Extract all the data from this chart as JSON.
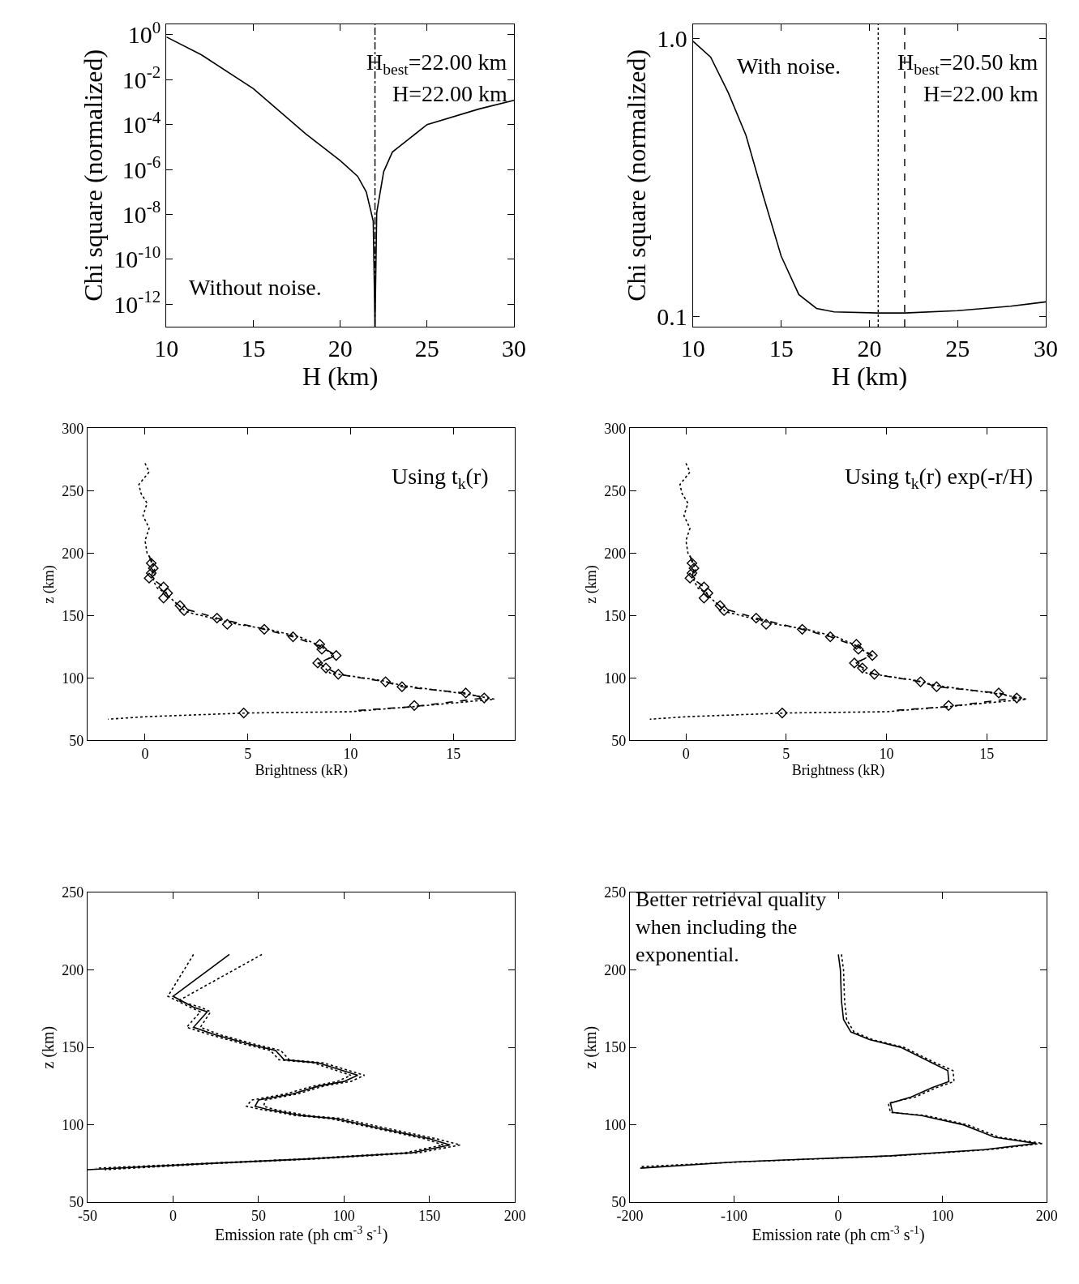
{
  "chart_data": [
    {
      "type": "line",
      "xlabel": "H (km)",
      "ylabel": "Chi square (normalized)",
      "log": "y",
      "xlim": [
        10,
        30
      ],
      "xticks": [
        10,
        15,
        20,
        25,
        30
      ],
      "ylim": [
        1e-13,
        3
      ],
      "yticks": [
        {
          "value": 1,
          "label": "10$^{0}$"
        },
        {
          "value": 0.01,
          "label": "10$^{-2}$"
        },
        {
          "value": 0.0001,
          "label": "10$^{-4}$"
        },
        {
          "value": 1e-06,
          "label": "10$^{-6}$"
        },
        {
          "value": 1e-08,
          "label": "10$^{-8}$"
        },
        {
          "value": 1e-10,
          "label": "10$^{-10}$"
        },
        {
          "value": 1e-12,
          "label": "10$^{-12}$"
        }
      ],
      "series": [
        {
          "color": "#000000",
          "line_style": "solid",
          "x": [
            10,
            12,
            15,
            18,
            20,
            21,
            21.5,
            21.9,
            22,
            22.1,
            22.5,
            23,
            25,
            28,
            30
          ],
          "values": [
            0.8,
            0.13,
            0.004,
            4e-05,
            2.5e-06,
            5e-07,
            1e-07,
            5e-09,
            1e-13,
            1.2e-08,
            8e-07,
            6e-06,
            0.0001,
            0.0005,
            0.0012
          ]
        }
      ],
      "ref_lines": [
        {
          "axis": "x",
          "value": 22,
          "line_style": "dashdot",
          "color": "#000000"
        }
      ],
      "annotations": [
        "H$_{best}$=22.00 km",
        "H=22.00 km",
        "Without noise."
      ],
      "grid": false
    },
    {
      "type": "line",
      "xlabel": "H (km)",
      "ylabel": "Chi square (normalized)",
      "log": "y",
      "xlim": [
        10,
        30
      ],
      "xticks": [
        10,
        15,
        20,
        25,
        30
      ],
      "ylim": [
        0.092,
        1.13
      ],
      "yticks": [
        {
          "value": 1,
          "label": "1.0"
        },
        0.1
      ],
      "series": [
        {
          "color": "#000000",
          "line_style": "solid",
          "x": [
            10,
            11,
            12,
            13,
            14,
            15,
            16,
            17,
            18,
            20.5,
            22,
            25,
            28,
            30
          ],
          "values": [
            0.98,
            0.86,
            0.64,
            0.45,
            0.27,
            0.165,
            0.12,
            0.107,
            0.104,
            0.103,
            0.103,
            0.105,
            0.109,
            0.113
          ]
        }
      ],
      "ref_lines": [
        {
          "axis": "x",
          "value": 20.5,
          "line_style": "dotted",
          "color": "#000000"
        },
        {
          "axis": "x",
          "value": 22,
          "line_style": "dashed",
          "color": "#000000"
        }
      ],
      "annotations": [
        "With noise.",
        "H$_{best}$=20.50 km",
        "H=22.00 km"
      ],
      "grid": false
    },
    {
      "type": "line",
      "xlabel": "Brightness (kR)",
      "ylabel": "z (km)",
      "xlim": [
        -2.8,
        18
      ],
      "xticks": [
        0,
        5,
        10,
        15
      ],
      "ylim": [
        50,
        300
      ],
      "yticks": [
        50,
        100,
        150,
        200,
        250,
        300
      ],
      "series": [
        {
          "color": "#000000",
          "line_style": "dotted",
          "x": [
            0,
            0.2,
            -0.3,
            -0.2,
            0.1,
            -0.1,
            0.2,
            0,
            0.1,
            0.3,
            0.5,
            0.4,
            0.6,
            1,
            1.5,
            2,
            3.5,
            4.5,
            6,
            7.5,
            8.5,
            9.2,
            8.5,
            9,
            11.5,
            12.5,
            15.7,
            17,
            13,
            10,
            5,
            0,
            -1.8
          ],
          "values": [
            272,
            265,
            255,
            248,
            240,
            230,
            220,
            210,
            200,
            195,
            185,
            178,
            172,
            168,
            160,
            153,
            147,
            143,
            139,
            133,
            126,
            118,
            112,
            104,
            98,
            94,
            87,
            83,
            77,
            73,
            72,
            69,
            67
          ]
        },
        {
          "color": "#000000",
          "line_style": "dashed",
          "x": [
            0.2,
            0.4,
            0.3,
            0.9,
            1.1,
            1.8,
            3.5,
            5.8,
            7.2,
            8.6,
            9.3,
            8.4,
            9.4,
            11.7,
            12.5,
            15.6,
            16.5,
            13,
            10.3
          ],
          "values": [
            198,
            188,
            180,
            173,
            166,
            156,
            148,
            139,
            133,
            125,
            118,
            112,
            103,
            97,
            93,
            88,
            84,
            77,
            74
          ]
        },
        {
          "type": "scatter",
          "color": "#000000",
          "marker": "diamond",
          "x": [
            0.3,
            0.4,
            0.3,
            0.2,
            0.9,
            1.1,
            0.9,
            1.7,
            1.9,
            3.5,
            4,
            5.8,
            7.2,
            8.5,
            8.6,
            9.3,
            8.4,
            8.8,
            9.4,
            11.7,
            12.5,
            15.6,
            16.5,
            13.1,
            4.8
          ],
          "values": [
            192,
            188,
            184,
            180,
            173,
            168,
            164,
            158,
            154,
            148,
            143,
            139,
            133,
            127,
            123,
            118,
            112,
            108,
            103,
            97,
            93,
            88,
            84,
            78,
            72
          ]
        }
      ],
      "annotations": [
        "Using t$_{k}$(r)"
      ],
      "grid": false
    },
    {
      "type": "line",
      "xlabel": "Brightness (kR)",
      "ylabel": "z (km)",
      "xlim": [
        -2.8,
        18
      ],
      "xticks": [
        0,
        5,
        10,
        15
      ],
      "ylim": [
        50,
        300
      ],
      "yticks": [
        50,
        100,
        150,
        200,
        250,
        300
      ],
      "series": [
        {
          "color": "#000000",
          "line_style": "dotted",
          "x": [
            0,
            0.2,
            -0.3,
            -0.2,
            0.1,
            -0.1,
            0.2,
            0,
            0.1,
            0.3,
            0.5,
            0.4,
            0.6,
            1,
            1.5,
            2,
            3.5,
            4.5,
            6,
            7.5,
            8.5,
            9.2,
            8.5,
            9,
            11.5,
            12.5,
            15.7,
            17,
            13,
            10,
            5,
            0,
            -1.8
          ],
          "values": [
            272,
            265,
            255,
            248,
            240,
            230,
            220,
            210,
            200,
            195,
            185,
            178,
            172,
            168,
            160,
            153,
            147,
            143,
            139,
            133,
            126,
            118,
            112,
            104,
            98,
            94,
            87,
            83,
            77,
            73,
            72,
            69,
            67
          ]
        },
        {
          "color": "#000000",
          "line_style": "dashed",
          "x": [
            0.2,
            0.4,
            0.3,
            0.9,
            1.1,
            1.8,
            3.5,
            5.8,
            7.2,
            8.6,
            9.3,
            8.4,
            9.4,
            11.7,
            12.5,
            15.6,
            16.5,
            13,
            10.3
          ],
          "values": [
            198,
            188,
            180,
            173,
            166,
            156,
            148,
            139,
            133,
            125,
            118,
            112,
            103,
            97,
            93,
            88,
            84,
            77,
            74
          ]
        },
        {
          "type": "scatter",
          "color": "#000000",
          "marker": "diamond",
          "x": [
            0.3,
            0.4,
            0.3,
            0.2,
            0.9,
            1.1,
            0.9,
            1.7,
            1.9,
            3.5,
            4,
            5.8,
            7.2,
            8.5,
            8.6,
            9.3,
            8.4,
            8.8,
            9.4,
            11.7,
            12.5,
            15.6,
            16.5,
            13.1,
            4.8
          ],
          "values": [
            192,
            188,
            184,
            180,
            173,
            168,
            164,
            158,
            154,
            148,
            143,
            139,
            133,
            127,
            123,
            118,
            112,
            108,
            103,
            97,
            93,
            88,
            84,
            78,
            72
          ]
        }
      ],
      "annotations": [
        "Using t$_{k}$(r) exp(-r/H)"
      ],
      "grid": false
    },
    {
      "type": "line",
      "xlabel": "Emission rate (ph cm$^{-3}$ s$^{-1}$)",
      "ylabel": "z (km)",
      "xlim": [
        -50,
        200
      ],
      "xticks": [
        -50,
        0,
        50,
        100,
        150,
        200
      ],
      "ylim": [
        50,
        250
      ],
      "yticks": [
        50,
        100,
        150,
        200,
        250
      ],
      "series": [
        {
          "color": "#000000",
          "line_style": "solid",
          "x": [
            33,
            0,
            12,
            20,
            12,
            25,
            45,
            60,
            65,
            85,
            108,
            100,
            85,
            70,
            50,
            48,
            55,
            75,
            95,
            120,
            150,
            162,
            140,
            80,
            20,
            -50
          ],
          "values": [
            210,
            183,
            176,
            173,
            163,
            158,
            152,
            148,
            142,
            140,
            132,
            128,
            125,
            120,
            116,
            112,
            110,
            106,
            104,
            98,
            91,
            87,
            82,
            78,
            75,
            71
          ]
        },
        {
          "color": "#000000",
          "line_style": "dotted",
          "x": [
            12,
            -3,
            10,
            16,
            8,
            22,
            42,
            57,
            62,
            82,
            104,
            96,
            82,
            66,
            46,
            43,
            51,
            72,
            92,
            117,
            147,
            158,
            136,
            76,
            16,
            -45
          ],
          "values": [
            210,
            183,
            176,
            173,
            163,
            158,
            152,
            148,
            142,
            140,
            132,
            128,
            125,
            120,
            116,
            112,
            110,
            106,
            104,
            98,
            91,
            87,
            82,
            78,
            75,
            72
          ]
        },
        {
          "color": "#000000",
          "line_style": "dotted",
          "x": [
            52,
            3,
            16,
            22,
            16,
            28,
            48,
            63,
            68,
            88,
            112,
            104,
            88,
            73,
            54,
            53,
            59,
            79,
            99,
            124,
            154,
            168,
            144,
            84,
            24,
            -40
          ],
          "values": [
            210,
            180,
            176,
            173,
            163,
            158,
            152,
            148,
            142,
            140,
            132,
            128,
            125,
            120,
            116,
            112,
            110,
            106,
            104,
            98,
            91,
            87,
            82,
            78,
            75,
            71
          ]
        }
      ],
      "grid": false
    },
    {
      "type": "line",
      "xlabel": "Emission rate (ph cm$^{-3}$ s$^{-1}$)",
      "ylabel": "z (km)",
      "xlim": [
        -200,
        200
      ],
      "xticks": [
        -200,
        -100,
        0,
        100,
        200
      ],
      "ylim": [
        50,
        250
      ],
      "yticks": [
        50,
        100,
        150,
        200,
        250
      ],
      "series": [
        {
          "color": "#000000",
          "line_style": "solid",
          "x": [
            0,
            2,
            3,
            5,
            12,
            30,
            60,
            90,
            105,
            106,
            90,
            70,
            50,
            52,
            80,
            120,
            135,
            150,
            190,
            140,
            50,
            -100,
            -190
          ],
          "values": [
            210,
            200,
            180,
            168,
            160,
            155,
            150,
            140,
            135,
            128,
            124,
            118,
            114,
            108,
            106,
            100,
            96,
            92,
            88,
            84,
            80,
            76,
            72
          ]
        },
        {
          "color": "#000000",
          "line_style": "dotted",
          "x": [
            3,
            5,
            6,
            8,
            15,
            33,
            63,
            93,
            110,
            111,
            94,
            74,
            48,
            50,
            84,
            124,
            139,
            154,
            196,
            145,
            55,
            -95,
            -190
          ],
          "values": [
            210,
            200,
            180,
            168,
            160,
            155,
            150,
            140,
            135,
            128,
            124,
            118,
            114,
            108,
            106,
            100,
            96,
            92,
            88,
            84,
            80,
            76,
            73
          ]
        }
      ],
      "annotations": [
        "Better retrieval quality\nwhen including the\nexponential."
      ],
      "grid": false
    }
  ]
}
